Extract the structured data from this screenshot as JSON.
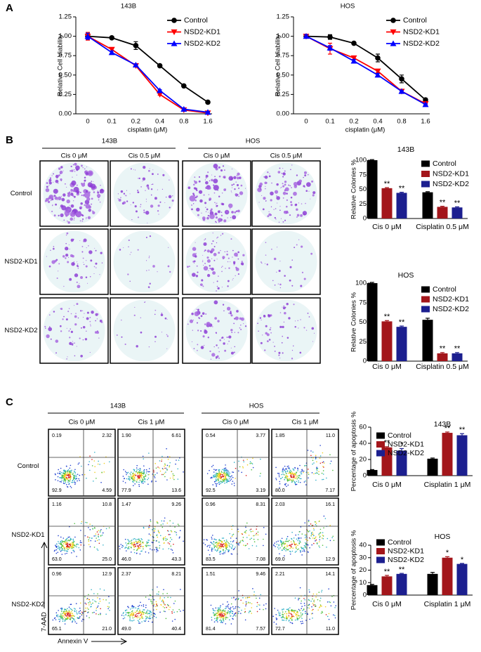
{
  "panel_labels": [
    "A",
    "B",
    "C"
  ],
  "chart_data": [
    {
      "type": "line",
      "title": "143B",
      "x_label": "cisplatin (μM)",
      "y_label": "Relative Cell Viability",
      "categories": [
        "0",
        "0.1",
        "0.2",
        "0.4",
        "0.8",
        "1.6"
      ],
      "ylim": [
        0,
        1.25
      ],
      "yticks": [
        {
          "value": 0,
          "label": "0.00"
        },
        {
          "value": 0.25,
          "label": "0.25"
        },
        {
          "value": 0.5,
          "label": "0.50"
        },
        {
          "value": 0.75,
          "label": "0.75"
        },
        {
          "value": 1,
          "label": "1.00"
        },
        {
          "value": 1.25,
          "label": "1.25"
        }
      ],
      "series": [
        {
          "name": "Control",
          "color": "#000000",
          "marker": "circle",
          "values": [
            1.0,
            0.98,
            0.88,
            0.62,
            0.36,
            0.15
          ],
          "errors": [
            0.04,
            0.01,
            0.05,
            0.01,
            0.01,
            0.01
          ]
        },
        {
          "name": "NSD2-KD1",
          "color": "#ff0000",
          "marker": "triangle-down",
          "values": [
            1.0,
            0.83,
            0.62,
            0.25,
            0.05,
            0.01
          ],
          "errors": [
            0.05,
            0.02,
            0.01,
            0.01,
            0.01,
            0.01
          ]
        },
        {
          "name": "NSD2-KD2",
          "color": "#0000ff",
          "marker": "triangle-up",
          "values": [
            1.0,
            0.79,
            0.63,
            0.3,
            0.06,
            0.02
          ],
          "errors": [
            0.04,
            0.02,
            0.01,
            0.01,
            0.01,
            0.01
          ]
        }
      ]
    },
    {
      "type": "line",
      "title": "HOS",
      "x_label": "cisplatin (μM)",
      "y_label": "Relative Cell Viability",
      "categories": [
        "0",
        "0.1",
        "0.2",
        "0.4",
        "0.8",
        "1.6"
      ],
      "ylim": [
        0,
        1.25
      ],
      "yticks": [
        {
          "value": 0,
          "label": "0.00"
        },
        {
          "value": 0.25,
          "label": "0.25"
        },
        {
          "value": 0.5,
          "label": "0.50"
        },
        {
          "value": 0.75,
          "label": "0.75"
        },
        {
          "value": 1,
          "label": "1.00"
        },
        {
          "value": 1.25,
          "label": "1.25"
        }
      ],
      "series": [
        {
          "name": "Control",
          "color": "#000000",
          "marker": "circle",
          "values": [
            1.0,
            0.99,
            0.91,
            0.72,
            0.45,
            0.18
          ],
          "errors": [
            0.02,
            0.03,
            0.01,
            0.05,
            0.05,
            0.02
          ]
        },
        {
          "name": "NSD2-KD1",
          "color": "#ff0000",
          "marker": "triangle-down",
          "values": [
            1.0,
            0.84,
            0.72,
            0.55,
            0.29,
            0.13
          ],
          "errors": [
            0.02,
            0.07,
            0.02,
            0.02,
            0.01,
            0.01
          ]
        },
        {
          "name": "NSD2-KD2",
          "color": "#0000ff",
          "marker": "triangle-up",
          "values": [
            1.0,
            0.85,
            0.68,
            0.5,
            0.29,
            0.12
          ],
          "errors": [
            0.02,
            0.03,
            0.02,
            0.02,
            0.01,
            0.01
          ]
        }
      ]
    },
    {
      "type": "bar",
      "title": "143B",
      "y_label": "Relative Colonies %",
      "categories": [
        "Cis 0 μM",
        "Cisplatin 0.5 μM"
      ],
      "ylim": [
        0,
        100
      ],
      "yticks": [
        0,
        25,
        50,
        75,
        100
      ],
      "series": [
        {
          "name": "Control",
          "color": "#000000",
          "values": [
            100,
            45
          ],
          "errors": [
            1,
            1
          ]
        },
        {
          "name": "NSD2-KD1",
          "color": "#a3161b",
          "values": [
            52,
            20
          ],
          "errors": [
            1,
            1
          ],
          "annotations": [
            "**",
            "**"
          ]
        },
        {
          "name": "NSD2-KD2",
          "color": "#1c1f8f",
          "values": [
            44,
            19
          ],
          "errors": [
            1,
            1
          ],
          "annotations": [
            "**",
            "**"
          ]
        }
      ]
    },
    {
      "type": "bar",
      "title": "HOS",
      "y_label": "Relative Colonies %",
      "categories": [
        "Cis 0 μM",
        "Cisplatin 0.5 μM"
      ],
      "ylim": [
        0,
        100
      ],
      "yticks": [
        0,
        25,
        50,
        75,
        100
      ],
      "series": [
        {
          "name": "Control",
          "color": "#000000",
          "values": [
            100,
            53
          ],
          "errors": [
            1,
            2
          ]
        },
        {
          "name": "NSD2-KD1",
          "color": "#a3161b",
          "values": [
            51,
            10
          ],
          "errors": [
            1,
            1
          ],
          "annotations": [
            "**",
            "**"
          ]
        },
        {
          "name": "NSD2-KD2",
          "color": "#1c1f8f",
          "values": [
            44,
            10
          ],
          "errors": [
            1,
            1
          ],
          "annotations": [
            "**",
            "**"
          ]
        }
      ]
    },
    {
      "type": "bar",
      "title": "143B",
      "y_label": "Percentage of apoptosis %",
      "categories": [
        "Cis 0 μM",
        "Cisplatin 1 μM"
      ],
      "ylim": [
        0,
        60
      ],
      "yticks": [
        0,
        20,
        40,
        60
      ],
      "series": [
        {
          "name": "Control",
          "color": "#000000",
          "values": [
            7,
            21
          ],
          "errors": [
            0.5,
            0.8
          ]
        },
        {
          "name": "NSD2-KD1",
          "color": "#a3161b",
          "values": [
            35,
            53
          ],
          "errors": [
            0.8,
            1
          ],
          "annotations": [
            "**",
            "**"
          ]
        },
        {
          "name": "NSD2-KD2",
          "color": "#1c1f8f",
          "values": [
            31,
            50
          ],
          "errors": [
            2.5,
            2
          ],
          "annotations": [
            "*",
            "**"
          ]
        }
      ]
    },
    {
      "type": "bar",
      "title": "HOS",
      "y_label": "Percentage of apoptosis %",
      "categories": [
        "Cis 0 μM",
        "Cisplatin 1 μM"
      ],
      "ylim": [
        0,
        40
      ],
      "yticks": [
        0,
        10,
        20,
        30,
        40
      ],
      "series": [
        {
          "name": "Control",
          "color": "#000000",
          "values": [
            8,
            17
          ],
          "errors": [
            0.6,
            1.2
          ]
        },
        {
          "name": "NSD2-KD1",
          "color": "#a3161b",
          "values": [
            15,
            30
          ],
          "errors": [
            0.8,
            0.8
          ],
          "annotations": [
            "**",
            "*"
          ]
        },
        {
          "name": "NSD2-KD2",
          "color": "#1c1f8f",
          "values": [
            17,
            25
          ],
          "errors": [
            0.4,
            0.4
          ],
          "annotations": [
            "**",
            "*"
          ]
        }
      ]
    }
  ],
  "colony_assay": {
    "groups": [
      "143B",
      "HOS"
    ],
    "columns": [
      "Cis 0 μM",
      "Cis 0.5 μM"
    ],
    "rows": [
      "Control",
      "NSD2-KD1",
      "NSD2-KD2"
    ]
  },
  "flow_cytometry": {
    "groups": [
      "143B",
      "HOS"
    ],
    "columns": [
      "Cis 0 μM",
      "Cis 1 μM"
    ],
    "rows": [
      "Control",
      "NSD2-KD1",
      "NSD2-KD2"
    ],
    "x_label": "Annexin V",
    "y_label": "7-AAD",
    "quadrants": [
      [
        [
          "0.19",
          "2.32",
          "92.9",
          "4.59"
        ],
        [
          "1.90",
          "6.61",
          "77.9",
          "13.6"
        ],
        [
          "0.54",
          "3.77",
          "92.5",
          "3.19"
        ],
        [
          "1.85",
          "11.0",
          "80.0",
          "7.17"
        ]
      ],
      [
        [
          "1.16",
          "10.8",
          "63.0",
          "25.0"
        ],
        [
          "1.47",
          "9.26",
          "46.0",
          "43.3"
        ],
        [
          "0.96",
          "8.31",
          "83.5",
          "7.08"
        ],
        [
          "2.03",
          "16.1",
          "69.0",
          "12.9"
        ]
      ],
      [
        [
          "0.96",
          "12.9",
          "65.1",
          "21.0"
        ],
        [
          "2.37",
          "8.21",
          "49.0",
          "40.4"
        ],
        [
          "1.51",
          "9.46",
          "81.4",
          "7.57"
        ],
        [
          "2.21",
          "14.1",
          "72.7",
          "11.0"
        ]
      ]
    ]
  }
}
